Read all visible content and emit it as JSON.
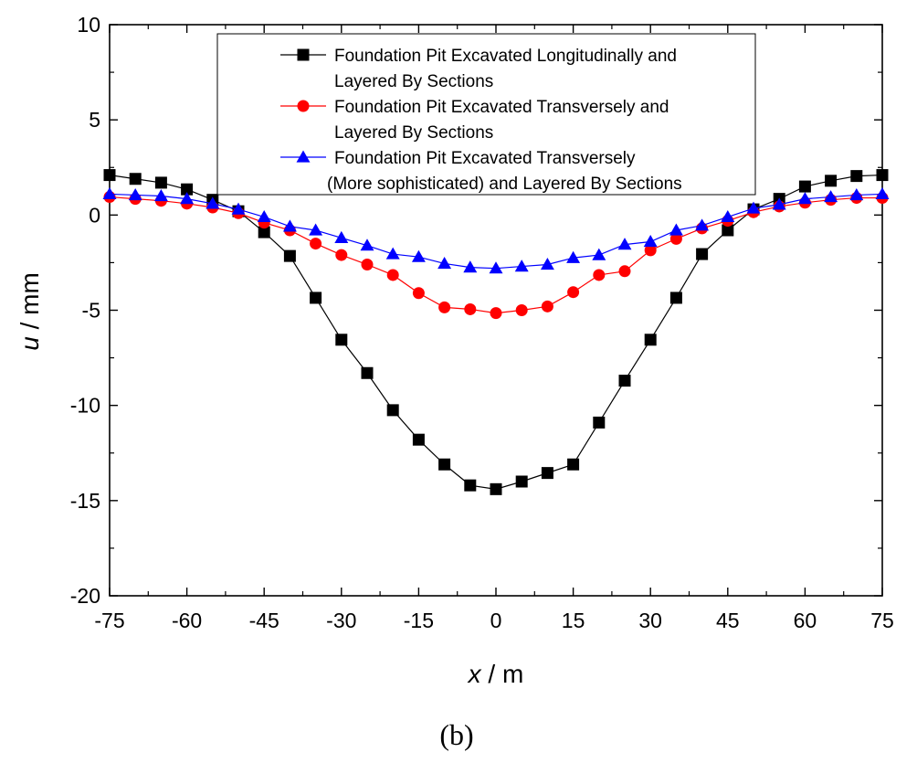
{
  "chart_data": {
    "type": "line",
    "title": "",
    "xlabel_var": "x",
    "xlabel_unit": " / m",
    "ylabel_var": "u",
    "ylabel_unit": " / mm",
    "xlim": [
      -75,
      75
    ],
    "ylim": [
      -20,
      10
    ],
    "xticks": [
      -75,
      -60,
      -45,
      -30,
      -15,
      0,
      15,
      30,
      45,
      60,
      75
    ],
    "yticks": [
      -20,
      -15,
      -10,
      -5,
      0,
      5,
      10
    ],
    "grid": false,
    "legend_position": "top-center",
    "panel_label": "(b)",
    "x": [
      -75,
      -70,
      -65,
      -60,
      -55,
      -50,
      -45,
      -40,
      -35,
      -30,
      -25,
      -20,
      -15,
      -10,
      -5,
      0,
      5,
      10,
      15,
      20,
      25,
      30,
      35,
      40,
      45,
      50,
      55,
      60,
      65,
      70,
      75
    ],
    "series": [
      {
        "name_lines": [
          "Foundation Pit Excavated Longitudinally and",
          "Layered By Sections"
        ],
        "color": "#000000",
        "marker": "square",
        "values": [
          2.1,
          1.9,
          1.7,
          1.35,
          0.8,
          0.2,
          -0.9,
          -2.15,
          -4.35,
          -6.55,
          -8.3,
          -10.25,
          -11.8,
          -13.1,
          -14.2,
          -14.4,
          -14.0,
          -13.55,
          -13.1,
          -10.9,
          -8.7,
          -6.55,
          -4.35,
          -2.05,
          -0.8,
          0.3,
          0.85,
          1.5,
          1.8,
          2.05,
          2.1
        ]
      },
      {
        "name_lines": [
          "Foundation Pit Excavated Transversely and",
          "Layered By Sections"
        ],
        "color": "#ff0000",
        "marker": "circle",
        "values": [
          0.95,
          0.85,
          0.75,
          0.6,
          0.4,
          0.1,
          -0.4,
          -0.8,
          -1.5,
          -2.1,
          -2.6,
          -3.15,
          -4.1,
          -4.85,
          -4.95,
          -5.15,
          -5.0,
          -4.8,
          -4.05,
          -3.15,
          -2.95,
          -1.85,
          -1.25,
          -0.7,
          -0.3,
          0.15,
          0.45,
          0.65,
          0.8,
          0.9,
          0.9
        ]
      },
      {
        "name_lines": [
          "Foundation Pit Excavated Transversely",
          "(More sophisticated) and Layered By Sections"
        ],
        "color": "#0000ff",
        "marker": "triangle",
        "values": [
          1.1,
          1.05,
          1.0,
          0.85,
          0.6,
          0.3,
          -0.1,
          -0.6,
          -0.8,
          -1.2,
          -1.6,
          -2.05,
          -2.2,
          -2.55,
          -2.75,
          -2.8,
          -2.7,
          -2.6,
          -2.25,
          -2.1,
          -1.55,
          -1.4,
          -0.8,
          -0.55,
          -0.1,
          0.35,
          0.55,
          0.85,
          0.95,
          1.05,
          1.1
        ]
      }
    ]
  }
}
